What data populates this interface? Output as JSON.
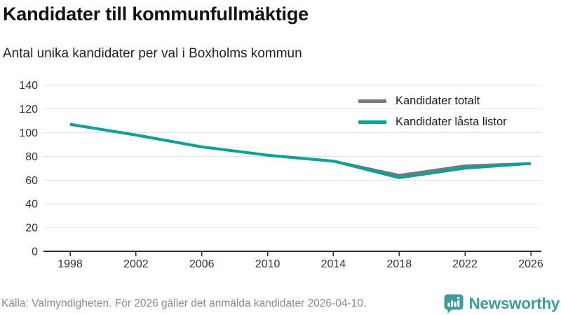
{
  "header": {
    "title": "Kandidater till kommunfullmäktige",
    "subtitle": "Antal unika kandidater per val i Boxholms kommun"
  },
  "chart_data": {
    "type": "line",
    "x": [
      1998,
      2002,
      2006,
      2010,
      2014,
      2018,
      2022,
      2026
    ],
    "xticks": [
      "1998",
      "2002",
      "2006",
      "2010",
      "2014",
      "2018",
      "2022",
      "2026"
    ],
    "yticks": [
      0,
      20,
      40,
      60,
      80,
      100,
      120,
      140
    ],
    "ylim": [
      0,
      140
    ],
    "grid": true,
    "legend_position": "top-right",
    "series": [
      {
        "name": "Kandidater totalt",
        "color": "#77777c",
        "values": [
          107,
          98,
          88,
          81,
          76,
          64,
          72,
          74
        ]
      },
      {
        "name": "Kandidater låsta listor",
        "color": "#0ba29a",
        "values": [
          107,
          98,
          88,
          81,
          76,
          62,
          70,
          74
        ]
      }
    ],
    "axis_color": "#2e2e2e",
    "gridline_color": "#e3e3e3",
    "tick_label_color": "#333333"
  },
  "footer": {
    "source": "Källa: Valmyndigheten. För 2026 gäller det anmälda kandidater 2026-04-10."
  },
  "brand": {
    "name": "Newsworthy",
    "color": "#3f9c9d",
    "icon": "bar-chart-speech-bubble-icon"
  }
}
